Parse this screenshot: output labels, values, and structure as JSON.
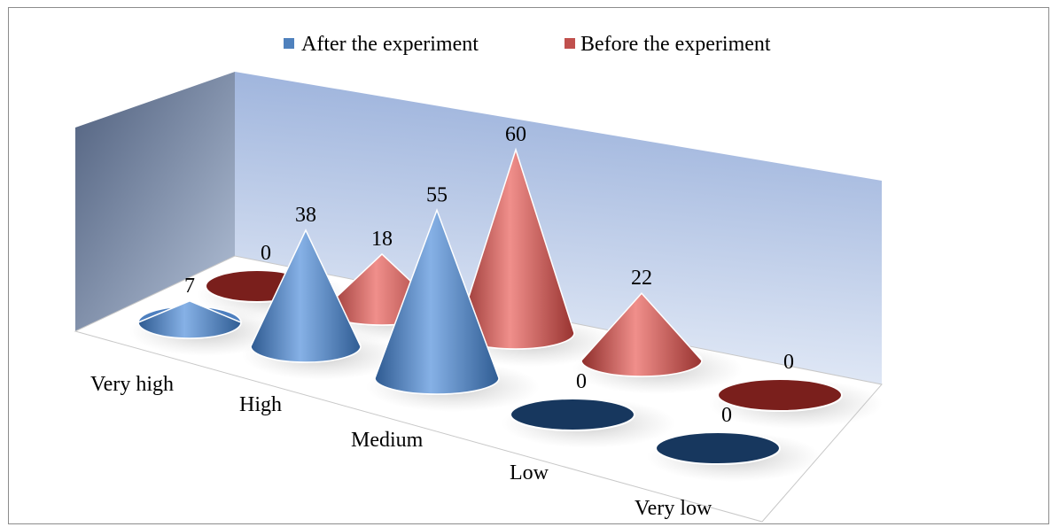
{
  "chart_data": {
    "type": "bar",
    "subtype": "3d-cone",
    "categories": [
      "Very high",
      "High",
      "Medium",
      "Low",
      "Very low"
    ],
    "series": [
      {
        "name": "After the experiment",
        "values": [
          7,
          38,
          55,
          0,
          0
        ],
        "color": "#4f81bd"
      },
      {
        "name": "Before the experiment",
        "values": [
          0,
          18,
          60,
          22,
          0
        ],
        "color": "#c0504d"
      }
    ],
    "data_labels": true,
    "legend_position": "top",
    "grid": false
  }
}
